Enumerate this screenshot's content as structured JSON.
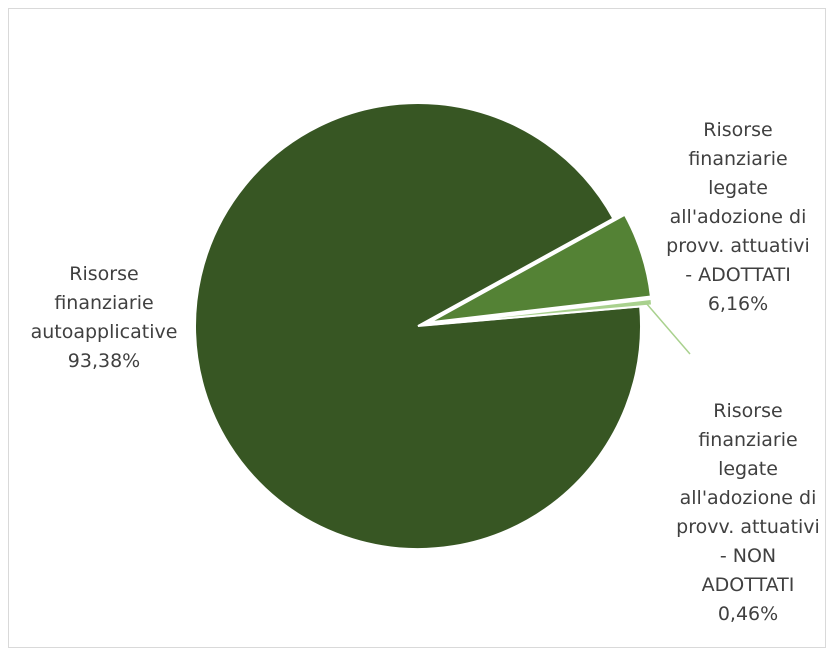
{
  "chart_data": {
    "type": "pie",
    "title": "",
    "series": [
      {
        "values": [
          93.38,
          6.16,
          0.46
        ],
        "categories": [
          "Risorse finanziarie autoapplicative",
          "Risorse finanziarie legate all'adozione di provv. attuativi - ADOTTATI",
          "Risorse finanziarie legate all'adozione di provv. attuativi - NON ADOTTATI"
        ],
        "colors": [
          "#375623",
          "#548235",
          "#a9d18e"
        ]
      }
    ],
    "exploded_slices": [
      1,
      2
    ],
    "legend": "none"
  },
  "labels": {
    "autoapplicative": {
      "lines": [
        "Risorse",
        "finanziarie",
        "autoapplicative"
      ],
      "value": "93,38%"
    },
    "adottati": {
      "lines": [
        "Risorse",
        "finanziarie",
        "legate",
        "all'adozione di",
        "provv. attuativi",
        "- ADOTTATI"
      ],
      "value": "6,16%"
    },
    "non_adottati": {
      "lines": [
        "Risorse",
        "finanziarie",
        "legate",
        "all'adozione di",
        "provv. attuativi",
        "- NON",
        "ADOTTATI"
      ],
      "value": "0,46%"
    }
  }
}
